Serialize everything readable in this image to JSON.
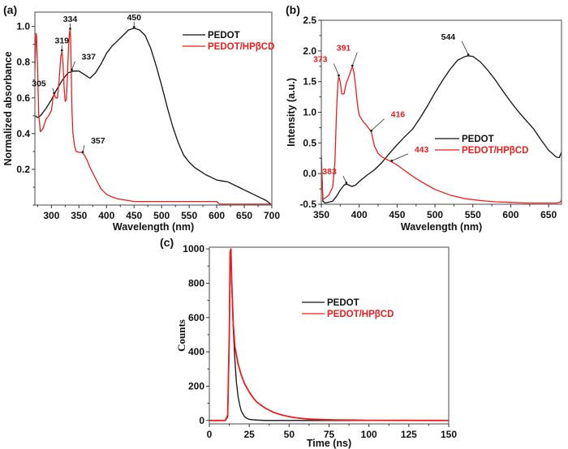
{
  "colors": {
    "pedot": "#111111",
    "hpbcd": "#ee1c1c",
    "frame": "#666666"
  },
  "chart_data": [
    {
      "id": "a",
      "type": "line",
      "panel_label": "(a)",
      "xlabel": "Wavelength (nm)",
      "ylabel": "Normalized absorbance",
      "xlim": [
        270,
        700
      ],
      "ylim": [
        0.0,
        1.08
      ],
      "xticks": [
        300,
        350,
        400,
        450,
        500,
        550,
        600,
        650,
        700
      ],
      "xtick_labels": [
        "300",
        "350",
        "400",
        "450",
        "500",
        "550",
        "600",
        "650",
        "700"
      ],
      "yticks": [
        0.2,
        0.4,
        0.6,
        0.8,
        1.0
      ],
      "ytick_labels": [
        "0.2",
        "0.4",
        "0.6",
        "0.8",
        "1.0"
      ],
      "legend": {
        "placement": "top-right",
        "entries": [
          "PEDOT",
          "PEDOT/HPβCD"
        ]
      },
      "series": [
        {
          "name": "PEDOT",
          "color_key": "pedot",
          "x": [
            270,
            275,
            280,
            290,
            300,
            310,
            320,
            330,
            340,
            350,
            360,
            370,
            380,
            390,
            400,
            410,
            420,
            430,
            440,
            450,
            460,
            470,
            480,
            490,
            500,
            510,
            520,
            530,
            540,
            550,
            560,
            570,
            580,
            590,
            600,
            610,
            620,
            630,
            640,
            650,
            660,
            670,
            680,
            690,
            700
          ],
          "y": [
            0.5,
            0.49,
            0.5,
            0.54,
            0.59,
            0.65,
            0.7,
            0.74,
            0.75,
            0.75,
            0.73,
            0.71,
            0.74,
            0.79,
            0.85,
            0.89,
            0.92,
            0.95,
            0.98,
            0.99,
            0.98,
            0.95,
            0.88,
            0.78,
            0.67,
            0.55,
            0.44,
            0.35,
            0.28,
            0.24,
            0.21,
            0.19,
            0.17,
            0.155,
            0.14,
            0.135,
            0.13,
            0.115,
            0.1,
            0.085,
            0.07,
            0.055,
            0.04,
            0.025,
            0.0
          ]
        },
        {
          "name": "PEDOT/HPβCD",
          "color_key": "hpbcd",
          "x": [
            270,
            272,
            273,
            275,
            277,
            280,
            285,
            290,
            295,
            300,
            303,
            305,
            308,
            311,
            314,
            317,
            319,
            321,
            323,
            325,
            327,
            329,
            331,
            333,
            334,
            335,
            336,
            337,
            339,
            342,
            345,
            350,
            355,
            357,
            360,
            365,
            370,
            380,
            390,
            400,
            410,
            420,
            430,
            440,
            450,
            500,
            550,
            600,
            605,
            650,
            700
          ],
          "y": [
            0.75,
            0.96,
            0.95,
            0.75,
            0.5,
            0.41,
            0.43,
            0.48,
            0.5,
            0.53,
            0.6,
            0.62,
            0.6,
            0.6,
            0.7,
            0.83,
            0.86,
            0.8,
            0.66,
            0.58,
            0.59,
            0.72,
            0.88,
            0.97,
            0.98,
            0.93,
            0.75,
            0.55,
            0.4,
            0.33,
            0.3,
            0.295,
            0.295,
            0.29,
            0.28,
            0.25,
            0.21,
            0.15,
            0.09,
            0.06,
            0.045,
            0.035,
            0.03,
            0.025,
            0.02,
            0.02,
            0.02,
            0.02,
            0.005,
            0.005,
            0.005
          ]
        }
      ],
      "annotations": [
        {
          "text": "450",
          "x": 450,
          "y": 0.99,
          "series": "PEDOT",
          "color_key": "pedot"
        },
        {
          "text": "334",
          "x": 334,
          "y": 0.98,
          "series": "PEDOT/HPβCD",
          "color_key": "pedot"
        },
        {
          "text": "319",
          "x": 319,
          "y": 0.86,
          "series": "PEDOT/HPβCD",
          "color_key": "pedot"
        },
        {
          "text": "337",
          "x": 337,
          "y": 0.75,
          "series": "PEDOT",
          "color_key": "pedot"
        },
        {
          "text": "305",
          "x": 305,
          "y": 0.62,
          "series": "PEDOT/HPβCD",
          "color_key": "pedot"
        },
        {
          "text": "357",
          "x": 357,
          "y": 0.29,
          "series": "PEDOT/HPβCD",
          "color_key": "pedot"
        }
      ]
    },
    {
      "id": "b",
      "type": "line",
      "panel_label": "(b)",
      "xlabel": "Wavelength (nm)",
      "ylabel": "Intensity (a.u.)",
      "xlim": [
        350,
        667
      ],
      "ylim": [
        -0.5,
        2.5
      ],
      "xticks": [
        350,
        400,
        450,
        500,
        550,
        600,
        650
      ],
      "xtick_labels": [
        "350",
        "400",
        "450",
        "500",
        "550",
        "600",
        "650"
      ],
      "yticks": [
        -0.5,
        0.0,
        0.5,
        1.0,
        1.5,
        2.0,
        2.5
      ],
      "ytick_labels": [
        "-0.5",
        "0.0",
        "0.5",
        "1.0",
        "1.5",
        "2.0",
        "2.5"
      ],
      "legend": {
        "placement": "center-right",
        "entries": [
          "PEDOT",
          "PEDOT/HPβCD"
        ]
      },
      "series": [
        {
          "name": "PEDOT",
          "color_key": "pedot",
          "x": [
            350,
            352,
            355,
            365,
            370,
            375,
            380,
            383,
            387,
            390,
            395,
            400,
            410,
            420,
            430,
            440,
            450,
            460,
            470,
            480,
            490,
            500,
            510,
            520,
            530,
            540,
            544,
            550,
            560,
            570,
            580,
            590,
            600,
            610,
            620,
            630,
            640,
            650,
            660,
            664,
            667
          ],
          "y": [
            0.3,
            -0.45,
            -0.48,
            -0.45,
            -0.37,
            -0.27,
            -0.19,
            -0.17,
            -0.19,
            -0.21,
            -0.19,
            -0.13,
            -0.03,
            0.06,
            0.18,
            0.33,
            0.47,
            0.6,
            0.72,
            0.9,
            1.1,
            1.32,
            1.52,
            1.7,
            1.85,
            1.91,
            1.92,
            1.91,
            1.82,
            1.68,
            1.52,
            1.34,
            1.17,
            1.01,
            0.87,
            0.73,
            0.55,
            0.38,
            0.27,
            0.26,
            0.35
          ]
        },
        {
          "name": "PEDOT/HPβCD",
          "color_key": "hpbcd",
          "x": [
            350,
            352,
            355,
            360,
            365,
            368,
            370,
            372,
            373,
            375,
            377,
            380,
            383,
            387,
            390,
            391,
            393,
            395,
            398,
            400,
            405,
            410,
            416,
            420,
            425,
            430,
            443,
            450,
            460,
            470,
            480,
            490,
            500,
            520,
            540,
            560,
            580,
            600,
            620,
            640,
            660,
            665,
            667
          ],
          "y": [
            0.2,
            -0.42,
            -0.4,
            -0.35,
            -0.22,
            0.2,
            1.0,
            1.5,
            1.58,
            1.5,
            1.3,
            1.3,
            1.48,
            1.6,
            1.72,
            1.74,
            1.65,
            1.45,
            1.1,
            0.95,
            0.85,
            0.78,
            0.68,
            0.45,
            0.33,
            0.27,
            0.19,
            0.14,
            0.05,
            -0.04,
            -0.12,
            -0.19,
            -0.26,
            -0.35,
            -0.41,
            -0.44,
            -0.46,
            -0.47,
            -0.48,
            -0.48,
            -0.48,
            -0.47,
            -0.43
          ]
        }
      ],
      "annotations": [
        {
          "text": "544",
          "x": 544,
          "y": 1.92,
          "series": "PEDOT",
          "color_key": "pedot"
        },
        {
          "text": "373",
          "x": 373,
          "y": 1.58,
          "series": "PEDOT/HPβCD",
          "color_key": "hpbcd"
        },
        {
          "text": "391",
          "x": 391,
          "y": 1.74,
          "series": "PEDOT/HPβCD",
          "color_key": "hpbcd"
        },
        {
          "text": "416",
          "x": 416,
          "y": 0.68,
          "series": "PEDOT/HPβCD",
          "color_key": "hpbcd"
        },
        {
          "text": "443",
          "x": 443,
          "y": 0.19,
          "series": "PEDOT/HPβCD",
          "color_key": "hpbcd"
        },
        {
          "text": "383",
          "x": 383,
          "y": -0.17,
          "series": "PEDOT",
          "color_key": "hpbcd"
        }
      ]
    },
    {
      "id": "c",
      "type": "line",
      "panel_label": "(c)",
      "xlabel": "Time (ns)",
      "ylabel": "Counts",
      "xlim": [
        0,
        150
      ],
      "ylim": [
        -20,
        1010
      ],
      "xticks": [
        0,
        25,
        50,
        75,
        100,
        125,
        150
      ],
      "xtick_labels": [
        "0",
        "25",
        "50",
        "75",
        "100",
        "125",
        "150"
      ],
      "yticks": [
        0,
        200,
        400,
        600,
        800,
        1000
      ],
      "ytick_labels": [
        "0",
        "200",
        "400",
        "600",
        "800",
        "1000"
      ],
      "legend": {
        "placement": "center",
        "entries": [
          "PEDOT",
          "PEDOT/HPβCD"
        ]
      },
      "series": [
        {
          "name": "PEDOT",
          "color_key": "pedot",
          "x": [
            0,
            10,
            11.5,
            12.5,
            13,
            13.5,
            14,
            15,
            16,
            17,
            18,
            19,
            20,
            22,
            24,
            26,
            30,
            35,
            150
          ],
          "y": [
            0,
            0,
            20,
            500,
            950,
            960,
            800,
            530,
            350,
            220,
            140,
            90,
            55,
            22,
            10,
            5,
            2,
            0,
            0
          ]
        },
        {
          "name": "PEDOT/HPβCD",
          "color_key": "hpbcd",
          "x": [
            0,
            10,
            11.5,
            12.5,
            13,
            13.5,
            14,
            15,
            16,
            18,
            20,
            22,
            25,
            28,
            30,
            35,
            40,
            45,
            50,
            55,
            60,
            65,
            70,
            80,
            90,
            100,
            150
          ],
          "y": [
            0,
            0,
            30,
            500,
            980,
            1000,
            820,
            560,
            430,
            330,
            265,
            215,
            165,
            125,
            105,
            72,
            48,
            33,
            22,
            15,
            10,
            7,
            5,
            3,
            2,
            1,
            0
          ]
        }
      ],
      "annotations": []
    }
  ]
}
